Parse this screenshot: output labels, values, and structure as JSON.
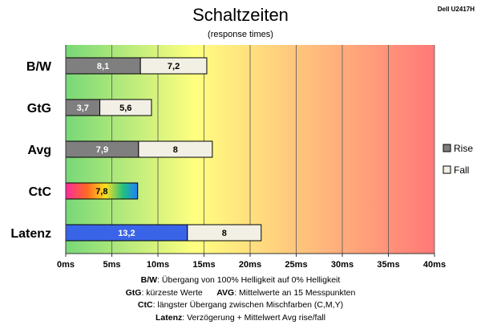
{
  "header": {
    "title": "Schaltzeiten",
    "subtitle": "(response times)",
    "model": "Dell U2417H"
  },
  "chart_data": {
    "type": "bar",
    "orientation": "horizontal",
    "stacked": true,
    "categories": [
      "B/W",
      "GtG",
      "Avg",
      "CtC",
      "Latenz"
    ],
    "series": [
      {
        "name": "Rise",
        "values": [
          8.1,
          3.7,
          7.9,
          7.8,
          13.2
        ]
      },
      {
        "name": "Fall",
        "values": [
          7.2,
          5.6,
          8,
          null,
          8
        ]
      }
    ],
    "value_labels": {
      "Rise": [
        "8,1",
        "3,7",
        "7,9",
        "7,8",
        "13,2"
      ],
      "Fall": [
        "7,2",
        "5,6",
        "8",
        "",
        "8"
      ]
    },
    "xlim": [
      0,
      40
    ],
    "xticks": [
      0,
      5,
      10,
      15,
      20,
      25,
      30,
      35,
      40
    ],
    "xtick_labels": [
      "0ms",
      "5ms",
      "10ms",
      "15ms",
      "20ms",
      "25ms",
      "30ms",
      "35ms",
      "40ms"
    ],
    "grid": true,
    "legend": "right",
    "colors": {
      "rise": "#7f7f7f",
      "fall": "#f2efe4",
      "latenz_rise": "#3a64e8",
      "background_gradient": [
        "#78d878",
        "#ffff80",
        "#ff7878"
      ]
    }
  },
  "footnotes": [
    {
      "label": "B/W",
      "text": ":  Übergang von 100% Helligkeit auf 0% Helligkeit"
    },
    {
      "label": "GtG",
      "text": ": kürzeste  Werte",
      "label2": "AVG",
      "text2": ": Mittelwerte  an 15 Messpunkten"
    },
    {
      "label": "CtC",
      "text": ": längster Übergang  zwischen Mischfarben (C,M,Y)"
    },
    {
      "label": "Latenz",
      "text": ": Verzögerung  + Mittelwert  Avg rise/fall"
    }
  ]
}
